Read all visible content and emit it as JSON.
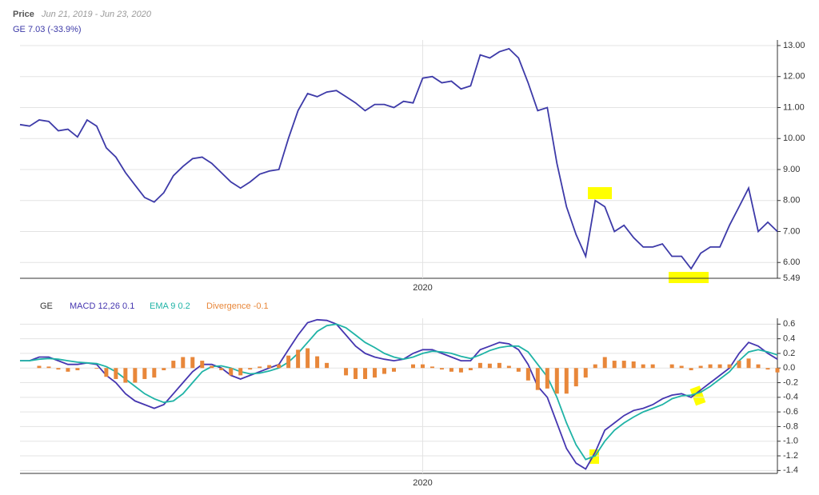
{
  "chart_data": [
    {
      "type": "line",
      "title": "Price",
      "subtitle": "Jun 21, 2019 - Jun 23, 2020",
      "categories": [
        null,
        null,
        null,
        null,
        null,
        null,
        null,
        null,
        null,
        null,
        null,
        null,
        null,
        null,
        null,
        null,
        null,
        null,
        null,
        null,
        null,
        null,
        null,
        null,
        null,
        null,
        null,
        null,
        null,
        null,
        null,
        null,
        null,
        null,
        null,
        null,
        null,
        null,
        null,
        null,
        null,
        null,
        "2020",
        null,
        null,
        null,
        null,
        null,
        null,
        null,
        null,
        null,
        null,
        null,
        null,
        null,
        null,
        null,
        null,
        null,
        null,
        null,
        null,
        null,
        null,
        null,
        null,
        null,
        null,
        null,
        null,
        null,
        null,
        null,
        null,
        null,
        null,
        null,
        null,
        null
      ],
      "series": [
        {
          "name": "GE 7.03 (-33.9%)",
          "color": "#3d3aa8",
          "values": [
            10.45,
            10.4,
            10.6,
            10.55,
            10.25,
            10.3,
            10.05,
            10.6,
            10.4,
            9.7,
            9.4,
            8.9,
            8.5,
            8.1,
            7.95,
            8.25,
            8.8,
            9.1,
            9.35,
            9.4,
            9.2,
            8.9,
            8.6,
            8.4,
            8.6,
            8.85,
            8.95,
            9.0,
            10.0,
            10.9,
            11.45,
            11.35,
            11.5,
            11.55,
            11.35,
            11.15,
            10.9,
            11.1,
            11.1,
            11.0,
            11.2,
            11.15,
            11.95,
            12.0,
            11.8,
            11.85,
            11.6,
            11.7,
            12.7,
            12.6,
            12.8,
            12.9,
            12.6,
            11.8,
            10.9,
            11.0,
            9.2,
            7.8,
            6.9,
            6.2,
            8.0,
            7.8,
            7.0,
            7.2,
            6.8,
            6.5,
            6.5,
            6.6,
            6.2,
            6.2,
            5.8,
            6.3,
            6.5,
            6.5,
            7.2,
            7.8,
            8.4,
            7.0,
            7.3,
            7.0
          ]
        }
      ],
      "ylim": [
        5.49,
        13.18
      ],
      "yticks": [
        {
          "value": 5.49,
          "label": "5.49"
        },
        {
          "value": 6,
          "label": "6.00"
        },
        {
          "value": 7,
          "label": "7.00"
        },
        {
          "value": 8,
          "label": "8.00"
        },
        {
          "value": 9,
          "label": "9.00"
        },
        {
          "value": 10,
          "label": "10.00"
        },
        {
          "value": 11,
          "label": "11.00"
        },
        {
          "value": 12,
          "label": "12.00"
        },
        {
          "value": 13,
          "label": "13.00"
        }
      ],
      "grid": true
    },
    {
      "type": "line",
      "legend_title": "GE",
      "categories": [
        null,
        null,
        null,
        null,
        null,
        null,
        null,
        null,
        null,
        null,
        null,
        null,
        null,
        null,
        null,
        null,
        null,
        null,
        null,
        null,
        null,
        null,
        null,
        null,
        null,
        null,
        null,
        null,
        null,
        null,
        null,
        null,
        null,
        null,
        null,
        null,
        null,
        null,
        null,
        null,
        null,
        null,
        "2020",
        null,
        null,
        null,
        null,
        null,
        null,
        null,
        null,
        null,
        null,
        null,
        null,
        null,
        null,
        null,
        null,
        null,
        null,
        null,
        null,
        null,
        null,
        null,
        null,
        null,
        null,
        null,
        null,
        null,
        null,
        null,
        null,
        null,
        null,
        null,
        null,
        null
      ],
      "series": [
        {
          "name": "MACD 12,26 0.1",
          "color": "#4536b0",
          "values": [
            0.1,
            0.1,
            0.15,
            0.15,
            0.1,
            0.05,
            0.05,
            0.07,
            0.05,
            -0.1,
            -0.2,
            -0.35,
            -0.45,
            -0.5,
            -0.55,
            -0.5,
            -0.35,
            -0.2,
            -0.05,
            0.05,
            0.05,
            0,
            -0.1,
            -0.15,
            -0.1,
            -0.05,
            0,
            0.05,
            0.25,
            0.45,
            0.62,
            0.66,
            0.65,
            0.6,
            0.45,
            0.3,
            0.2,
            0.15,
            0.12,
            0.1,
            0.12,
            0.2,
            0.25,
            0.25,
            0.2,
            0.15,
            0.1,
            0.1,
            0.25,
            0.3,
            0.35,
            0.33,
            0.25,
            0.05,
            -0.25,
            -0.4,
            -0.75,
            -1.1,
            -1.3,
            -1.38,
            -1.15,
            -0.85,
            -0.75,
            -0.65,
            -0.58,
            -0.55,
            -0.5,
            -0.42,
            -0.37,
            -0.35,
            -0.4,
            -0.3,
            -0.2,
            -0.1,
            0,
            0.2,
            0.35,
            0.3,
            0.2,
            0.12
          ]
        },
        {
          "name": "EMA 9 0.2",
          "color": "#1fb3a6",
          "values": [
            0.1,
            0.1,
            0.12,
            0.13,
            0.12,
            0.1,
            0.08,
            0.07,
            0.06,
            0.02,
            -0.05,
            -0.15,
            -0.25,
            -0.35,
            -0.42,
            -0.47,
            -0.45,
            -0.35,
            -0.2,
            -0.05,
            0.02,
            0.03,
            0,
            -0.05,
            -0.08,
            -0.07,
            -0.04,
            0,
            0.08,
            0.2,
            0.35,
            0.5,
            0.58,
            0.6,
            0.55,
            0.45,
            0.35,
            0.28,
            0.2,
            0.15,
            0.12,
            0.15,
            0.2,
            0.23,
            0.22,
            0.2,
            0.16,
            0.13,
            0.18,
            0.24,
            0.28,
            0.3,
            0.3,
            0.22,
            0.05,
            -0.12,
            -0.4,
            -0.75,
            -1.05,
            -1.25,
            -1.2,
            -1.0,
            -0.85,
            -0.75,
            -0.67,
            -0.6,
            -0.55,
            -0.5,
            -0.42,
            -0.38,
            -0.37,
            -0.33,
            -0.25,
            -0.15,
            -0.05,
            0.1,
            0.22,
            0.25,
            0.22,
            0.18
          ]
        },
        {
          "name": "Divergence -0.1",
          "color": "#e8873a",
          "type": "bar",
          "values": [
            0,
            0,
            0.03,
            0.02,
            -0.02,
            -0.05,
            -0.03,
            0,
            -0.01,
            -0.12,
            -0.15,
            -0.2,
            -0.2,
            -0.15,
            -0.13,
            -0.03,
            0.1,
            0.15,
            0.15,
            0.1,
            0.03,
            -0.03,
            -0.1,
            -0.1,
            -0.02,
            0.02,
            0.04,
            0.05,
            0.17,
            0.25,
            0.27,
            0.16,
            0.07,
            0,
            -0.1,
            -0.15,
            -0.15,
            -0.13,
            -0.08,
            -0.05,
            0,
            0.05,
            0.05,
            0.02,
            -0.02,
            -0.05,
            -0.06,
            -0.03,
            0.07,
            0.06,
            0.07,
            0.03,
            -0.05,
            -0.17,
            -0.3,
            -0.28,
            -0.35,
            -0.35,
            -0.25,
            -0.13,
            0.05,
            0.15,
            0.1,
            0.1,
            0.09,
            0.05,
            0.05,
            0,
            0.05,
            0.03,
            -0.03,
            0.03,
            0.05,
            0.05,
            0.05,
            0.1,
            0.13,
            0.05,
            -0.02,
            -0.06
          ]
        }
      ],
      "ylim": [
        -1.44,
        0.68
      ],
      "yticks": [
        0.6,
        0.4,
        0.2,
        {
          "value": 0,
          "label": "0.0"
        },
        -0.2,
        -0.4,
        -0.6,
        -0.8,
        {
          "value": -1,
          "label": "-1.0"
        },
        -1.2,
        -1.4
      ],
      "grid": true
    }
  ]
}
